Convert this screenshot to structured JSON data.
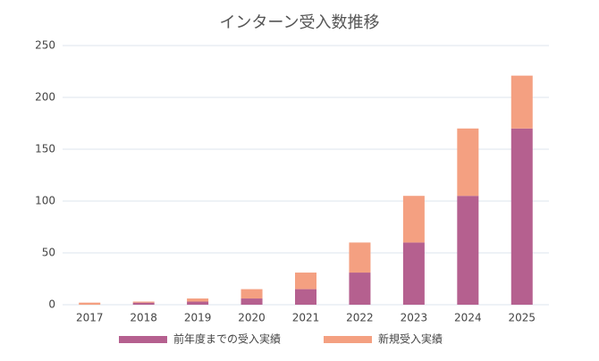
{
  "chart_data": {
    "type": "stacked-bar",
    "title": "インターン受入数推移",
    "categories": [
      "2017",
      "2018",
      "2019",
      "2020",
      "2021",
      "2022",
      "2023",
      "2024",
      "2025"
    ],
    "series": [
      {
        "name": "前年度までの受入実績",
        "color": "#b5608f",
        "values": [
          0,
          2,
          3,
          6,
          15,
          31,
          60,
          105,
          170
        ]
      },
      {
        "name": "新規受入実績",
        "color": "#f4a081",
        "values": [
          2,
          1,
          3,
          9,
          16,
          29,
          45,
          65,
          51
        ]
      }
    ],
    "ylim": [
      0,
      250
    ],
    "yticks": [
      0,
      50,
      100,
      150,
      200,
      250
    ],
    "grid": true,
    "legend": "bottom"
  }
}
